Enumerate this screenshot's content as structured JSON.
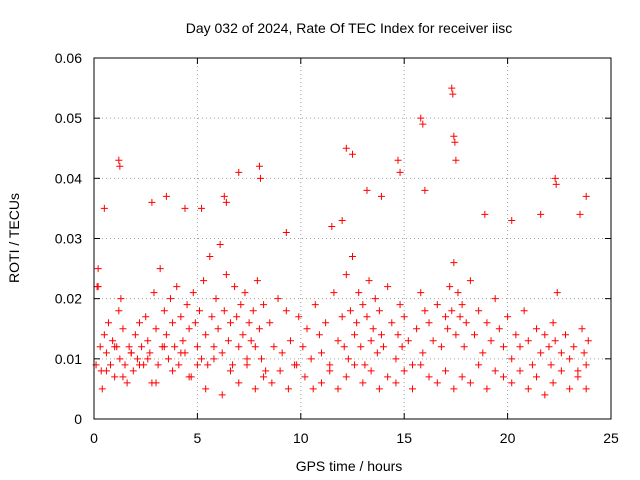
{
  "chart_data": {
    "type": "scatter",
    "title": "Day 032 of 2024, Rate Of TEC Index for receiver iisc",
    "xlabel": "GPS time / hours",
    "ylabel": "ROTI / TECUs",
    "xlim": [
      0,
      25
    ],
    "ylim": [
      0,
      0.06
    ],
    "xticks": [
      0,
      5,
      10,
      15,
      20,
      25
    ],
    "xtick_labels": [
      "0",
      "5",
      "10",
      "15",
      "20",
      "25"
    ],
    "yticks": [
      0,
      0.01,
      0.02,
      0.03,
      0.04,
      0.05,
      0.06
    ],
    "ytick_labels": [
      "0",
      "0.01",
      "0.02",
      "0.03",
      "0.04",
      "0.05",
      "0.06"
    ],
    "grid": true,
    "marker": "plus",
    "series": [
      {
        "name": "ROTI",
        "color": "#ff0000",
        "x": [
          0.1,
          0.15,
          0.2,
          0.3,
          0.35,
          0.4,
          0.5,
          0.6,
          0.7,
          0.8,
          0.9,
          1.0,
          1.1,
          1.2,
          1.25,
          1.3,
          1.4,
          1.5,
          1.6,
          1.7,
          1.8,
          1.9,
          2.0,
          2.1,
          2.2,
          2.3,
          2.4,
          2.5,
          2.6,
          2.7,
          2.8,
          2.9,
          3.0,
          3.1,
          3.2,
          3.3,
          3.4,
          3.5,
          3.6,
          3.7,
          3.8,
          3.9,
          4.0,
          4.1,
          4.2,
          4.3,
          4.4,
          4.5,
          4.6,
          4.7,
          4.8,
          4.9,
          5.0,
          5.1,
          5.2,
          5.3,
          5.4,
          5.5,
          5.6,
          5.7,
          5.8,
          5.9,
          6.0,
          6.1,
          6.2,
          6.3,
          6.4,
          6.5,
          6.6,
          6.7,
          6.8,
          6.9,
          7.0,
          7.1,
          7.2,
          7.3,
          7.4,
          7.5,
          7.6,
          7.7,
          7.8,
          7.9,
          8.0,
          8.1,
          8.2,
          8.3,
          8.5,
          8.7,
          8.9,
          9.1,
          9.3,
          9.5,
          9.7,
          9.9,
          10.1,
          10.3,
          10.5,
          10.7,
          10.9,
          11.0,
          11.2,
          11.4,
          11.6,
          11.8,
          12.0,
          12.1,
          12.2,
          12.3,
          12.4,
          12.5,
          12.6,
          12.7,
          12.8,
          12.9,
          13.0,
          13.1,
          13.2,
          13.3,
          13.4,
          13.5,
          13.6,
          13.7,
          13.8,
          13.9,
          14.0,
          14.2,
          14.4,
          14.6,
          14.7,
          14.8,
          14.9,
          15.0,
          15.2,
          15.4,
          15.6,
          15.8,
          15.9,
          16.0,
          16.2,
          16.4,
          16.6,
          16.8,
          17.0,
          17.1,
          17.2,
          17.3,
          17.4,
          17.5,
          17.6,
          17.7,
          17.8,
          17.9,
          18.0,
          18.2,
          18.4,
          18.6,
          18.8,
          19.0,
          19.2,
          19.4,
          19.6,
          19.8,
          20.0,
          20.2,
          20.4,
          20.6,
          20.8,
          21.0,
          21.2,
          21.4,
          21.6,
          21.8,
          22.0,
          22.1,
          22.2,
          22.3,
          22.4,
          22.6,
          22.8,
          23.0,
          23.2,
          23.4,
          23.6,
          23.7,
          23.8,
          23.9,
          0.2,
          0.6,
          1.0,
          1.4,
          1.8,
          2.2,
          2.6,
          3.0,
          3.4,
          3.8,
          4.2,
          4.6,
          5.0,
          5.4,
          5.8,
          6.2,
          6.6,
          7.0,
          7.4,
          7.8,
          8.2,
          8.6,
          9.0,
          9.4,
          9.8,
          10.2,
          10.6,
          11.0,
          11.4,
          11.8,
          12.2,
          12.6,
          13.0,
          13.4,
          13.8,
          14.2,
          14.6,
          15.0,
          15.4,
          15.8,
          16.2,
          16.6,
          17.0,
          17.4,
          17.8,
          18.2,
          18.6,
          19.0,
          19.4,
          19.8,
          20.2,
          20.6,
          21.0,
          21.4,
          21.8,
          22.2,
          22.6,
          23.0,
          23.4,
          23.8,
          1.2,
          1.25,
          6.3,
          6.4,
          7.0,
          8.0,
          8.05,
          12.2,
          12.5,
          13.2,
          14.7,
          14.8,
          15.8,
          15.9,
          17.3,
          17.35,
          17.4,
          17.45,
          17.5,
          22.3,
          22.35,
          23.8,
          0.5,
          2.8,
          3.5,
          4.4,
          5.2,
          9.3,
          11.5,
          12.0,
          13.9,
          16.0,
          18.9,
          20.2,
          21.6,
          23.5
        ],
        "y": [
          0.009,
          0.022,
          0.025,
          0.012,
          0.008,
          0.005,
          0.014,
          0.011,
          0.016,
          0.009,
          0.013,
          0.007,
          0.012,
          0.018,
          0.01,
          0.02,
          0.015,
          0.009,
          0.006,
          0.012,
          0.011,
          0.008,
          0.014,
          0.01,
          0.016,
          0.012,
          0.009,
          0.017,
          0.013,
          0.011,
          0.006,
          0.021,
          0.015,
          0.009,
          0.025,
          0.012,
          0.018,
          0.014,
          0.01,
          0.02,
          0.016,
          0.012,
          0.022,
          0.009,
          0.017,
          0.013,
          0.011,
          0.019,
          0.015,
          0.007,
          0.021,
          0.016,
          0.012,
          0.018,
          0.01,
          0.023,
          0.014,
          0.009,
          0.027,
          0.017,
          0.012,
          0.02,
          0.015,
          0.029,
          0.011,
          0.018,
          0.024,
          0.013,
          0.016,
          0.009,
          0.022,
          0.017,
          0.012,
          0.019,
          0.014,
          0.021,
          0.01,
          0.016,
          0.013,
          0.018,
          0.012,
          0.023,
          0.015,
          0.01,
          0.019,
          0.008,
          0.016,
          0.012,
          0.02,
          0.011,
          0.018,
          0.013,
          0.009,
          0.017,
          0.012,
          0.015,
          0.01,
          0.019,
          0.014,
          0.011,
          0.016,
          0.009,
          0.021,
          0.013,
          0.017,
          0.012,
          0.024,
          0.01,
          0.018,
          0.027,
          0.014,
          0.016,
          0.021,
          0.012,
          0.019,
          0.009,
          0.017,
          0.023,
          0.013,
          0.015,
          0.02,
          0.011,
          0.018,
          0.014,
          0.012,
          0.022,
          0.016,
          0.01,
          0.014,
          0.019,
          0.012,
          0.017,
          0.013,
          0.009,
          0.015,
          0.021,
          0.011,
          0.018,
          0.016,
          0.013,
          0.019,
          0.012,
          0.017,
          0.015,
          0.022,
          0.018,
          0.026,
          0.014,
          0.021,
          0.017,
          0.019,
          0.012,
          0.016,
          0.023,
          0.014,
          0.018,
          0.011,
          0.016,
          0.013,
          0.02,
          0.015,
          0.012,
          0.017,
          0.01,
          0.014,
          0.012,
          0.018,
          0.013,
          0.009,
          0.015,
          0.011,
          0.014,
          0.012,
          0.009,
          0.016,
          0.013,
          0.021,
          0.011,
          0.014,
          0.01,
          0.012,
          0.008,
          0.015,
          0.011,
          0.009,
          0.013,
          0.022,
          0.008,
          0.012,
          0.007,
          0.011,
          0.009,
          0.01,
          0.006,
          0.012,
          0.008,
          0.011,
          0.007,
          0.009,
          0.005,
          0.01,
          0.004,
          0.008,
          0.006,
          0.009,
          0.005,
          0.007,
          0.006,
          0.008,
          0.005,
          0.009,
          0.007,
          0.005,
          0.006,
          0.008,
          0.005,
          0.007,
          0.009,
          0.006,
          0.008,
          0.005,
          0.007,
          0.006,
          0.008,
          0.005,
          0.009,
          0.007,
          0.006,
          0.008,
          0.005,
          0.007,
          0.006,
          0.009,
          0.005,
          0.008,
          0.007,
          0.006,
          0.008,
          0.005,
          0.007,
          0.004,
          0.006,
          0.008,
          0.005,
          0.007,
          0.005,
          0.043,
          0.042,
          0.037,
          0.036,
          0.041,
          0.042,
          0.04,
          0.045,
          0.044,
          0.038,
          0.043,
          0.041,
          0.05,
          0.049,
          0.055,
          0.054,
          0.047,
          0.046,
          0.043,
          0.04,
          0.039,
          0.037,
          0.035,
          0.036,
          0.037,
          0.035,
          0.035,
          0.031,
          0.032,
          0.033,
          0.037,
          0.038,
          0.034,
          0.033,
          0.034,
          0.034
        ]
      }
    ]
  }
}
